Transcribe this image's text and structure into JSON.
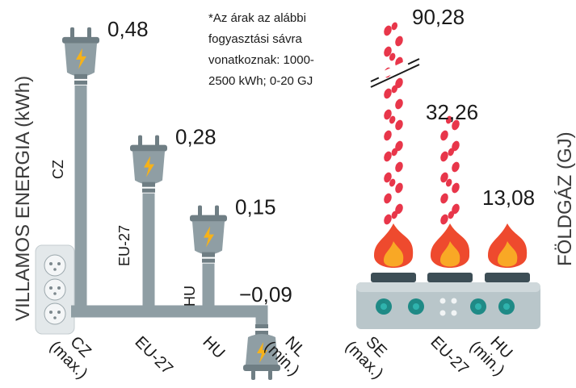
{
  "left_axis_label": "VILLAMOS ENERGIA (kWh)",
  "right_axis_label": "FÖLDGÁZ (GJ)",
  "note_lines": [
    "*Az árak az alábbi",
    "fogyasztási sávra",
    "vonatkoznak: 1000-",
    "2500 kWh; 0-20 GJ"
  ],
  "colors": {
    "plug": "#8f9ea4",
    "plug_dark": "#6f7e84",
    "bolt": "#f6b21a",
    "flame_outer": "#ee4a2e",
    "flame_inner": "#f9a825",
    "drop": "#e8364a",
    "stove": "#b9c6ca",
    "knob": "#1f8a86"
  },
  "chart_data": [
    {
      "type": "bar",
      "ylabel": "VILLAMOS ENERGIA (kWh)",
      "categories": [
        {
          "label": "CZ",
          "sublabel": "(max.)",
          "code": "CZ",
          "value_text": "0,48"
        },
        {
          "label": "EU-27",
          "sublabel": "",
          "code": "EU-27",
          "value_text": "0,28"
        },
        {
          "label": "HU",
          "sublabel": "",
          "code": "HU",
          "value_text": "0,15"
        },
        {
          "label": "NL",
          "sublabel": "(min.)",
          "code": "",
          "value_text": "−0,09"
        }
      ],
      "values": [
        0.48,
        0.28,
        0.15,
        -0.09
      ]
    },
    {
      "type": "bar",
      "ylabel": "FÖLDGÁZ (GJ)",
      "categories": [
        {
          "label": "SE",
          "sublabel": "(max.)",
          "value_text": "90,28"
        },
        {
          "label": "EU-27",
          "sublabel": "",
          "value_text": "32,26"
        },
        {
          "label": "HU",
          "sublabel": "(min.)",
          "value_text": "13,08"
        }
      ],
      "values": [
        90.28,
        32.26,
        13.08
      ]
    }
  ]
}
